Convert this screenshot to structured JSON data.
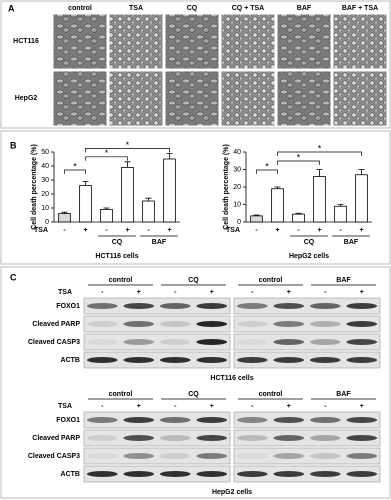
{
  "panel_a": {
    "label": "A",
    "columns": [
      "control",
      "TSA",
      "CQ",
      "CQ + TSA",
      "BAF",
      "BAF + TSA"
    ],
    "rows": [
      "HCT116",
      "HepG2"
    ]
  },
  "panel_b": {
    "label": "B"
  },
  "chart_data": [
    {
      "type": "bar",
      "ylabel": "Cell death percentage (%)",
      "x_row_label": "TSA",
      "categories": [
        "-",
        "+",
        "-",
        "+",
        "-",
        "+"
      ],
      "groups": [
        "CQ",
        "BAF"
      ],
      "values": [
        6,
        26,
        9,
        39,
        15,
        45
      ],
      "errors": [
        1,
        3,
        1,
        4,
        2,
        4
      ],
      "ylim": [
        0,
        50
      ],
      "yticks": [
        0,
        10,
        20,
        30,
        40,
        50
      ],
      "color": "#ffffff",
      "annotations": [
        "*",
        "*",
        "*"
      ],
      "xlabel": "HCT116 cells"
    },
    {
      "type": "bar",
      "ylabel": "Cell death percentage (%)",
      "x_row_label": "TSA",
      "categories": [
        "-",
        "+",
        "-",
        "+",
        "-",
        "+"
      ],
      "groups": [
        "CQ",
        "BAF"
      ],
      "values": [
        3.5,
        19,
        4.5,
        26,
        9,
        27
      ],
      "errors": [
        0.5,
        1,
        0.5,
        4,
        1,
        3
      ],
      "ylim": [
        0,
        40
      ],
      "yticks": [
        0,
        10,
        20,
        30,
        40
      ],
      "color": "#ffffff",
      "annotations": [
        "*",
        "*",
        "*"
      ],
      "xlabel": "HepG2 cells"
    }
  ],
  "panel_c": {
    "label": "C",
    "blots": [
      {
        "groups": [
          "control",
          "CQ",
          "control",
          "BAF"
        ],
        "treatment": "TSA",
        "lanes": [
          "-",
          "+",
          "-",
          "+",
          "-",
          "+",
          "-",
          "+"
        ],
        "proteins": [
          "FOXO1",
          "Cleaved PARP",
          "Cleaved CASP3",
          "ACTB"
        ],
        "caption": "HCT116  cells"
      },
      {
        "groups": [
          "control",
          "CQ",
          "control",
          "BAF"
        ],
        "treatment": "TSA",
        "lanes": [
          "-",
          "+",
          "-",
          "+",
          "-",
          "+",
          "-",
          "+"
        ],
        "proteins": [
          "FOXO1",
          "Cleaved PARP",
          "Cleaved CASP3",
          "ACTB"
        ],
        "caption": "HepG2  cells"
      }
    ]
  }
}
